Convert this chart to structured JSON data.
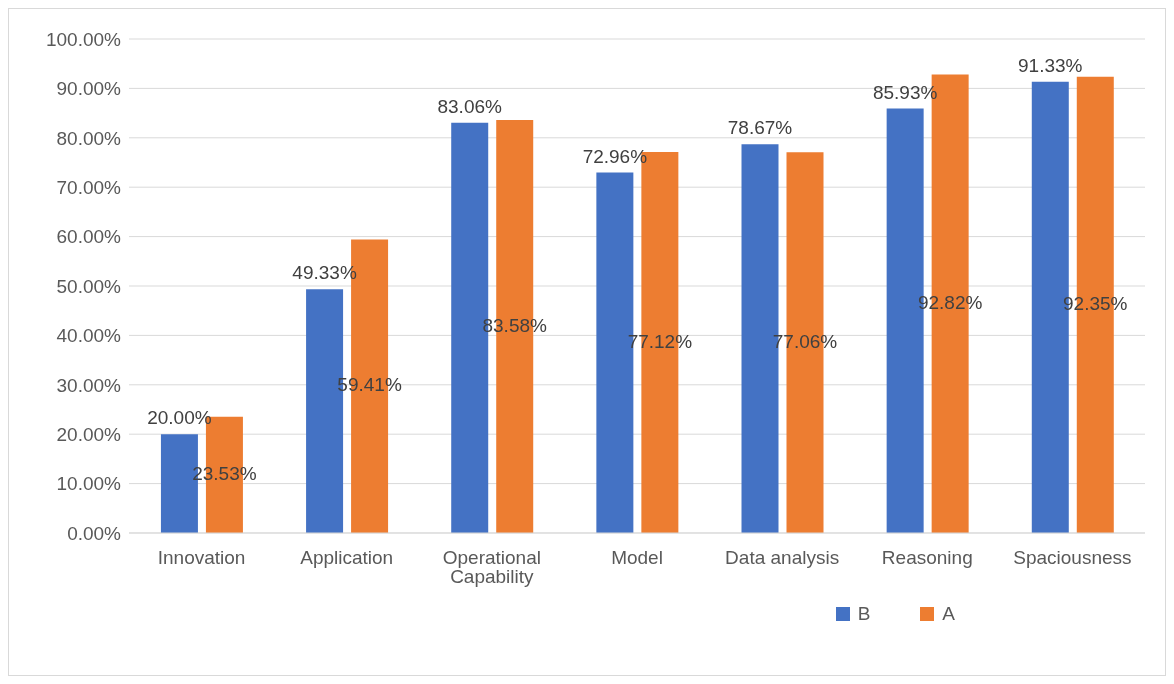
{
  "chart_data": {
    "type": "bar",
    "categories": [
      "Innovation",
      "Application",
      "Operational Capability",
      "Model",
      "Data analysis",
      "Reasoning",
      "Spaciousness"
    ],
    "series": [
      {
        "name": "B",
        "color": "#4472c4",
        "values": [
          20.0,
          49.33,
          83.06,
          72.96,
          78.67,
          85.93,
          91.33
        ],
        "value_labels": [
          "20.00%",
          "49.33%",
          "83.06%",
          "72.96%",
          "78.67%",
          "85.93%",
          "91.33%"
        ]
      },
      {
        "name": "A",
        "color": "#ed7d31",
        "values": [
          23.53,
          59.41,
          83.58,
          77.12,
          77.06,
          92.82,
          92.35
        ],
        "value_labels": [
          "23.53%",
          "59.41%",
          "83.58%",
          "77.12%",
          "77.06%",
          "92.82%",
          "92.35%"
        ]
      }
    ],
    "ylim": [
      0,
      100
    ],
    "yticks": [
      {
        "value": 0,
        "label": "0.00%"
      },
      {
        "value": 10,
        "label": "10.00%"
      },
      {
        "value": 20,
        "label": "20.00%"
      },
      {
        "value": 30,
        "label": "30.00%"
      },
      {
        "value": 40,
        "label": "40.00%"
      },
      {
        "value": 50,
        "label": "50.00%"
      },
      {
        "value": 60,
        "label": "60.00%"
      },
      {
        "value": 70,
        "label": "70.00%"
      },
      {
        "value": 80,
        "label": "80.00%"
      },
      {
        "value": 90,
        "label": "90.00%"
      },
      {
        "value": 100,
        "label": "100.00%"
      }
    ],
    "grid": "y",
    "legend": "bottom right"
  }
}
